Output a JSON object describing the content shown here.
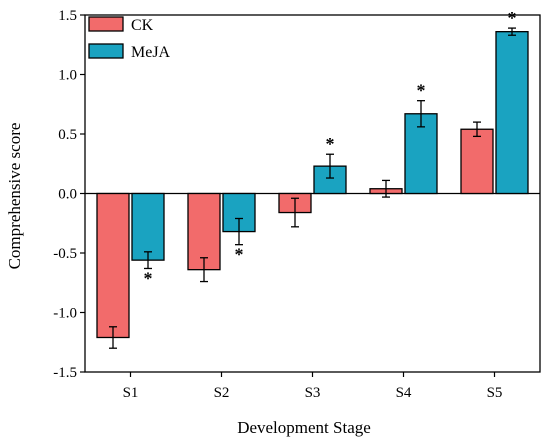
{
  "chart_data": {
    "type": "bar",
    "title": "",
    "xlabel": "Development Stage",
    "ylabel": "Comprehensive score",
    "categories": [
      "S1",
      "S2",
      "S3",
      "S4",
      "S5"
    ],
    "ylim": [
      -1.5,
      1.5
    ],
    "yticks": [
      "-1.5",
      "-1.0",
      "-0.5",
      "0.0",
      "0.5",
      "1.0",
      "1.5"
    ],
    "grid": false,
    "legend_position": "top-left",
    "series": [
      {
        "name": "CK",
        "color": "#f26b6b",
        "values": [
          -1.21,
          -0.64,
          -0.16,
          0.04,
          0.54
        ],
        "errors": [
          0.09,
          0.1,
          0.12,
          0.07,
          0.06
        ],
        "significance": [
          "",
          "",
          "",
          "",
          ""
        ]
      },
      {
        "name": "MeJA",
        "color": "#1aa3c1",
        "values": [
          -0.56,
          -0.32,
          0.23,
          0.67,
          1.36
        ],
        "errors": [
          0.07,
          0.11,
          0.1,
          0.11,
          0.03
        ],
        "significance": [
          "*",
          "*",
          "*",
          "*",
          "*"
        ]
      }
    ]
  }
}
